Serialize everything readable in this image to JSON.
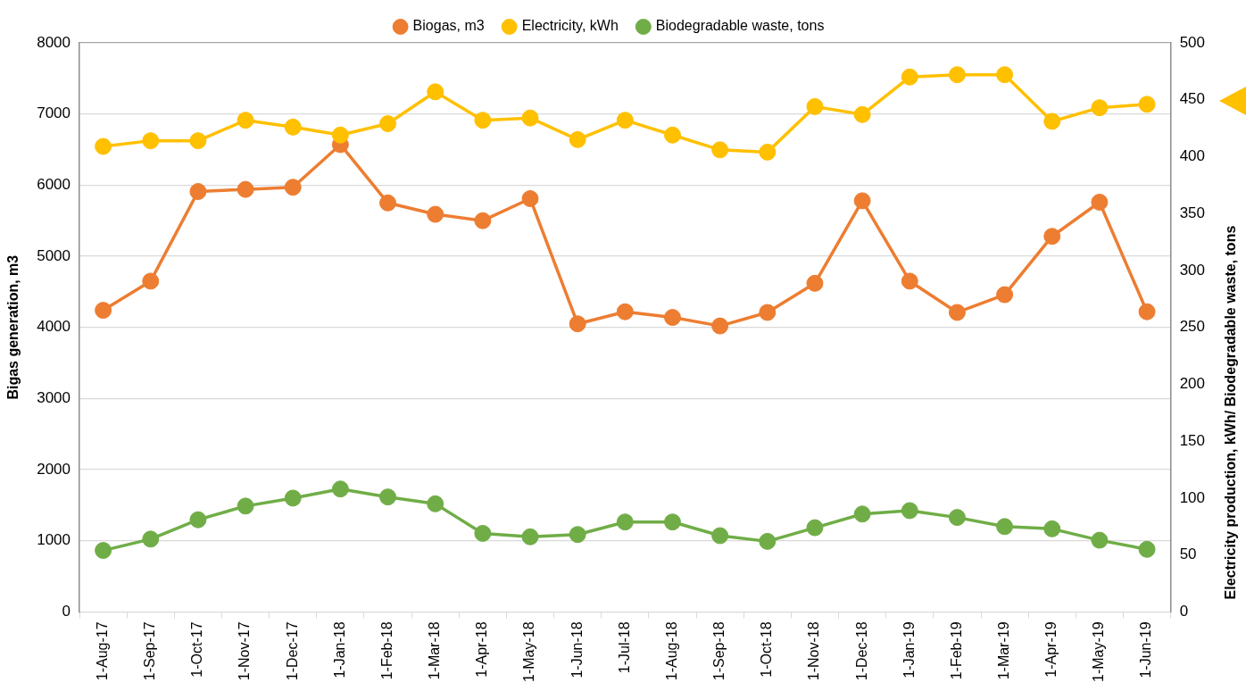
{
  "chart_data": {
    "type": "line",
    "legend": "top",
    "grid": "y",
    "marker": "circle",
    "line_style": "solid",
    "ylabel": "Bigas generation, m3",
    "y2label": "Electricity production, kWh/ Biodegradable waste, tons",
    "categories": [
      "1-Aug-17",
      "1-Sep-17",
      "1-Oct-17",
      "1-Nov-17",
      "1-Dec-17",
      "1-Jan-18",
      "1-Feb-18",
      "1-Mar-18",
      "1-Apr-18",
      "1-May-18",
      "1-Jun-18",
      "1-Jul-18",
      "1-Aug-18",
      "1-Sep-18",
      "1-Oct-18",
      "1-Nov-18",
      "1-Dec-18",
      "1-Jan-19",
      "1-Feb-19",
      "1-Mar-19",
      "1-Apr-19",
      "1-May-19",
      "1-Jun-19"
    ],
    "ylim": [
      0,
      8000
    ],
    "yticks": [
      0,
      1000,
      2000,
      3000,
      4000,
      5000,
      6000,
      7000,
      8000
    ],
    "y2lim": [
      0,
      500
    ],
    "y2ticks": [
      0,
      50,
      100,
      150,
      200,
      250,
      300,
      350,
      400,
      450,
      500
    ],
    "series": [
      {
        "name": "Biogas, m3",
        "color": "#ed7d31",
        "values": [
          4240,
          4650,
          5910,
          5940,
          5970,
          6570,
          5750,
          5590,
          5500,
          5810,
          4050,
          4220,
          4140,
          4020,
          4210,
          4620,
          5780,
          4650,
          4210,
          4460,
          5280,
          5760,
          4220
        ]
      },
      {
        "name": "Electricity, kWh",
        "color": "#ffc000",
        "axis": "y2",
        "values": [
          409,
          414,
          414,
          432,
          426,
          419,
          429,
          457,
          432,
          434,
          415,
          432,
          419,
          406,
          404,
          444,
          437,
          470,
          472,
          472,
          431,
          443,
          446
        ]
      },
      {
        "name": "Biodegradable waste, tons",
        "color": "#70ad47",
        "axis": "y2",
        "values": [
          54,
          64,
          81,
          93,
          100,
          108,
          101,
          95,
          69,
          66,
          68,
          79,
          79,
          67,
          62,
          74,
          86,
          89,
          83,
          75,
          73,
          63,
          55
        ]
      }
    ]
  }
}
